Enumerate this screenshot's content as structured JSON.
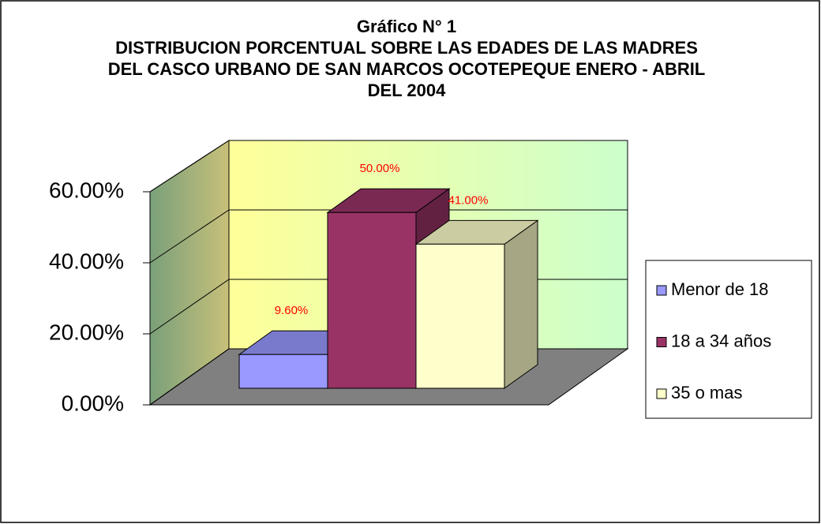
{
  "chart_data": {
    "type": "bar3d",
    "title": "Gráfico N° 1",
    "subtitle": "DISTRIBUCION PORCENTUAL SOBRE LAS EDADES DE LAS MADRES DEL CASCO URBANO DE SAN MARCOS OCOTEPEQUE ENERO - ABRIL DEL 2004",
    "series": [
      {
        "name": "Menor de 18",
        "color": "#9999ff",
        "values": [
          9.6
        ],
        "value_labels": [
          "9.60%"
        ]
      },
      {
        "name": "18 a 34 años",
        "color": "#993366",
        "values": [
          50
        ],
        "value_labels": [
          "50.00%"
        ]
      },
      {
        "name": "35 o mas",
        "color": "#ffffcc",
        "values": [
          41
        ],
        "value_labels": [
          "41.00%"
        ]
      }
    ],
    "ylim": [
      0,
      60
    ],
    "yticks": [
      {
        "value": 0,
        "label": "0.00%"
      },
      {
        "value": 20,
        "label": "20.00%"
      },
      {
        "value": 40,
        "label": "40.00%"
      },
      {
        "value": 60,
        "label": "60.00%"
      }
    ],
    "grid": true,
    "legend": "right"
  }
}
